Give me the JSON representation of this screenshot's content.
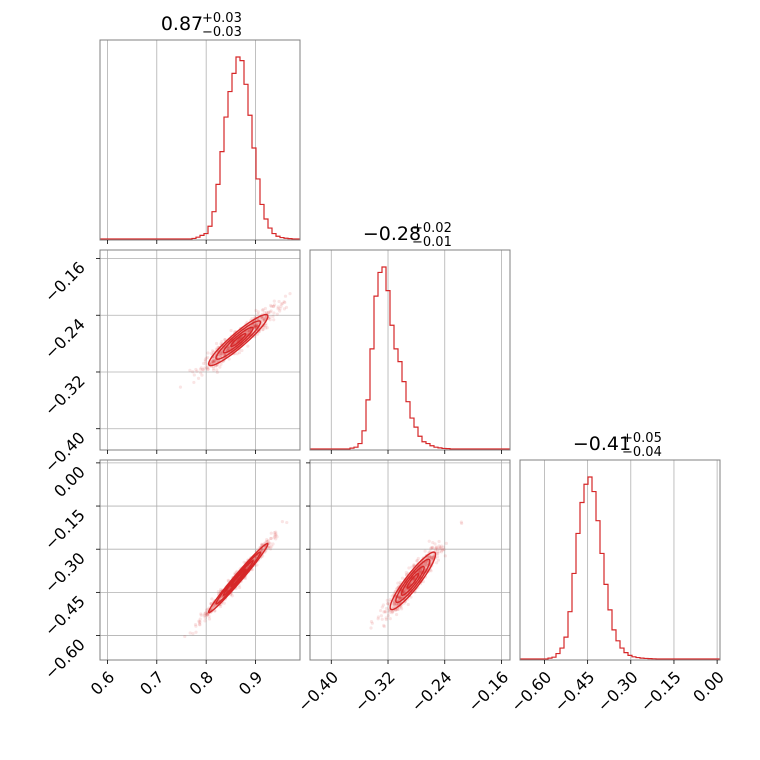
{
  "chart_data": {
    "type": "corner",
    "color": "#d62728",
    "grid": true,
    "parameters": [
      {
        "median": "0.87",
        "plus": "+0.03",
        "minus": "−0.03",
        "range": [
          0.585,
          0.99
        ],
        "ticks": [
          {
            "v": 0.6,
            "label": "0.6"
          },
          {
            "v": 0.7,
            "label": "0.7"
          },
          {
            "v": 0.8,
            "label": "0.8"
          },
          {
            "v": 0.9,
            "label": "0.9"
          }
        ]
      },
      {
        "median": "−0.28",
        "plus": "+0.02",
        "minus": "−0.01",
        "range": [
          -0.43,
          -0.148
        ],
        "ticks": [
          {
            "v": -0.16,
            "label": "−0.16"
          },
          {
            "v": -0.24,
            "label": "−0.24"
          },
          {
            "v": -0.32,
            "label": "−0.32"
          },
          {
            "v": -0.4,
            "label": "−0.40"
          }
        ]
      },
      {
        "median": "−0.41",
        "plus": "+0.05",
        "minus": "−0.04",
        "range": [
          -0.685,
          0.01
        ],
        "ticks": [
          {
            "v": 0.0,
            "label": "0.00"
          },
          {
            "v": -0.15,
            "label": "−0.15"
          },
          {
            "v": -0.3,
            "label": "−0.30"
          },
          {
            "v": -0.45,
            "label": "−0.45"
          },
          {
            "v": -0.6,
            "label": "−0.60"
          }
        ]
      }
    ],
    "histograms": [
      {
        "param": 0,
        "start": 0.585,
        "step": 0.0081,
        "counts": [
          0,
          0,
          0,
          0,
          0,
          0,
          0,
          0,
          0,
          0,
          0,
          0,
          0,
          0,
          0,
          0,
          0,
          0,
          0,
          0,
          0,
          0,
          0,
          0.003,
          0.01,
          0.02,
          0.03,
          0.07,
          0.15,
          0.3,
          0.48,
          0.67,
          0.81,
          0.91,
          1.0,
          0.98,
          0.85,
          0.68,
          0.5,
          0.33,
          0.19,
          0.11,
          0.06,
          0.03,
          0.015,
          0.008,
          0.004,
          0.002,
          0,
          0
        ]
      },
      {
        "param": 1,
        "start": -0.43,
        "step": 0.00564,
        "counts": [
          0,
          0,
          0,
          0,
          0,
          0,
          0,
          0,
          0,
          0,
          0.005,
          0.01,
          0.03,
          0.1,
          0.27,
          0.55,
          0.84,
          0.97,
          1.0,
          0.87,
          0.68,
          0.55,
          0.48,
          0.37,
          0.26,
          0.17,
          0.12,
          0.07,
          0.04,
          0.03,
          0.018,
          0.01,
          0.006,
          0.003,
          0.002,
          0,
          0,
          0,
          0,
          0,
          0,
          0,
          0,
          0,
          0,
          0,
          0,
          0,
          0,
          0
        ]
      },
      {
        "param": 2,
        "start": -0.685,
        "step": 0.0139,
        "counts": [
          0,
          0,
          0,
          0,
          0,
          0,
          0,
          0.005,
          0.01,
          0.03,
          0.06,
          0.12,
          0.26,
          0.47,
          0.69,
          0.86,
          0.96,
          1.0,
          0.92,
          0.76,
          0.58,
          0.41,
          0.27,
          0.16,
          0.1,
          0.06,
          0.035,
          0.02,
          0.012,
          0.008,
          0.005,
          0.003,
          0.002,
          0.001,
          0,
          0,
          0,
          0,
          0,
          0,
          0,
          0,
          0,
          0,
          0,
          0,
          0,
          0,
          0,
          0
        ]
      }
    ],
    "pairs": [
      {
        "x_param": 0,
        "y_param": 1,
        "corr": 0.93,
        "cx": 0.865,
        "cy": -0.275,
        "sx": 0.03,
        "sy": 0.018,
        "spread": 0.01
      },
      {
        "x_param": 0,
        "y_param": 2,
        "corr": 0.985,
        "cx": 0.865,
        "cy": -0.4,
        "sx": 0.03,
        "sy": 0.06,
        "spread": 0.005
      },
      {
        "x_param": 1,
        "y_param": 2,
        "corr": 0.92,
        "cx": -0.285,
        "cy": -0.41,
        "sx": 0.016,
        "sy": 0.05,
        "spread": 0.015
      }
    ]
  }
}
